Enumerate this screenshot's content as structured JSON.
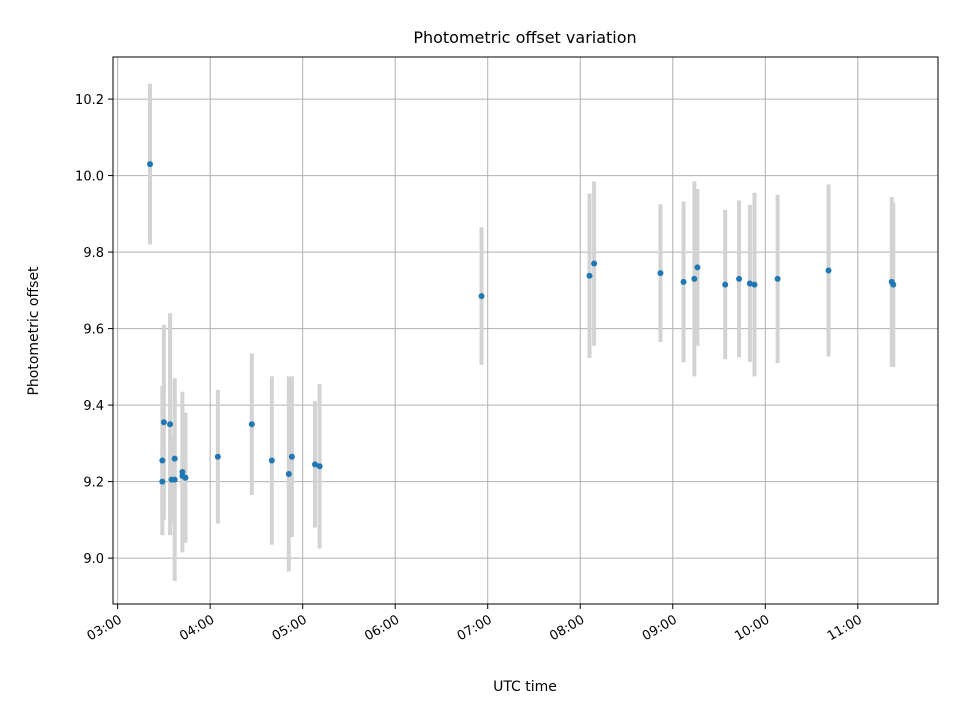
{
  "chart_data": {
    "type": "scatter",
    "title": "Photometric offset variation",
    "xlabel": "UTC time",
    "ylabel": "Photometric offset",
    "xlim": [
      "02:57",
      "11:52"
    ],
    "ylim": [
      8.88,
      10.31
    ],
    "grid": true,
    "x_ticks": [
      "03:00",
      "04:00",
      "05:00",
      "06:00",
      "07:00",
      "08:00",
      "09:00",
      "10:00",
      "11:00"
    ],
    "y_ticks": [
      9.0,
      9.2,
      9.4,
      9.6,
      9.8,
      10.0,
      10.2
    ],
    "y_tick_labels": [
      "9.0",
      "9.2",
      "9.4",
      "9.6",
      "9.8",
      "10.0",
      "10.2"
    ],
    "colors": {
      "marker": "#1f77b4",
      "errorbar": "#d3d3d3",
      "grid": "#b0b0b0"
    },
    "series": [
      {
        "points": [
          {
            "x": "03:21",
            "y": 10.03,
            "err": 0.21
          },
          {
            "x": "03:29",
            "y": 9.255,
            "err": 0.195
          },
          {
            "x": "03:29",
            "y": 9.2,
            "err": 0.1
          },
          {
            "x": "03:30",
            "y": 9.355,
            "err": 0.255
          },
          {
            "x": "03:34",
            "y": 9.35,
            "err": 0.29
          },
          {
            "x": "03:35",
            "y": 9.205,
            "err": 0.115
          },
          {
            "x": "03:37",
            "y": 9.205,
            "err": 0.265
          },
          {
            "x": "03:37",
            "y": 9.26,
            "err": 0.21
          },
          {
            "x": "03:42",
            "y": 9.225,
            "err": 0.21
          },
          {
            "x": "03:42",
            "y": 9.215,
            "err": 0.175
          },
          {
            "x": "03:44",
            "y": 9.21,
            "err": 0.17
          },
          {
            "x": "04:05",
            "y": 9.265,
            "err": 0.175
          },
          {
            "x": "04:27",
            "y": 9.35,
            "err": 0.185
          },
          {
            "x": "04:40",
            "y": 9.255,
            "err": 0.22
          },
          {
            "x": "04:51",
            "y": 9.22,
            "err": 0.255
          },
          {
            "x": "04:53",
            "y": 9.265,
            "err": 0.21
          },
          {
            "x": "05:08",
            "y": 9.245,
            "err": 0.165
          },
          {
            "x": "05:11",
            "y": 9.24,
            "err": 0.215
          },
          {
            "x": "06:56",
            "y": 9.685,
            "err": 0.18
          },
          {
            "x": "08:06",
            "y": 9.738,
            "err": 0.215
          },
          {
            "x": "08:09",
            "y": 9.77,
            "err": 0.215
          },
          {
            "x": "08:52",
            "y": 9.745,
            "err": 0.18
          },
          {
            "x": "09:07",
            "y": 9.722,
            "err": 0.21
          },
          {
            "x": "09:14",
            "y": 9.73,
            "err": 0.255
          },
          {
            "x": "09:16",
            "y": 9.76,
            "err": 0.205
          },
          {
            "x": "09:34",
            "y": 9.715,
            "err": 0.195
          },
          {
            "x": "09:43",
            "y": 9.73,
            "err": 0.205
          },
          {
            "x": "09:50",
            "y": 9.718,
            "err": 0.205
          },
          {
            "x": "09:53",
            "y": 9.715,
            "err": 0.24
          },
          {
            "x": "10:08",
            "y": 9.73,
            "err": 0.22
          },
          {
            "x": "10:41",
            "y": 9.752,
            "err": 0.225
          },
          {
            "x": "11:22",
            "y": 9.722,
            "err": 0.222
          },
          {
            "x": "11:23",
            "y": 9.715,
            "err": 0.215
          }
        ]
      }
    ]
  }
}
